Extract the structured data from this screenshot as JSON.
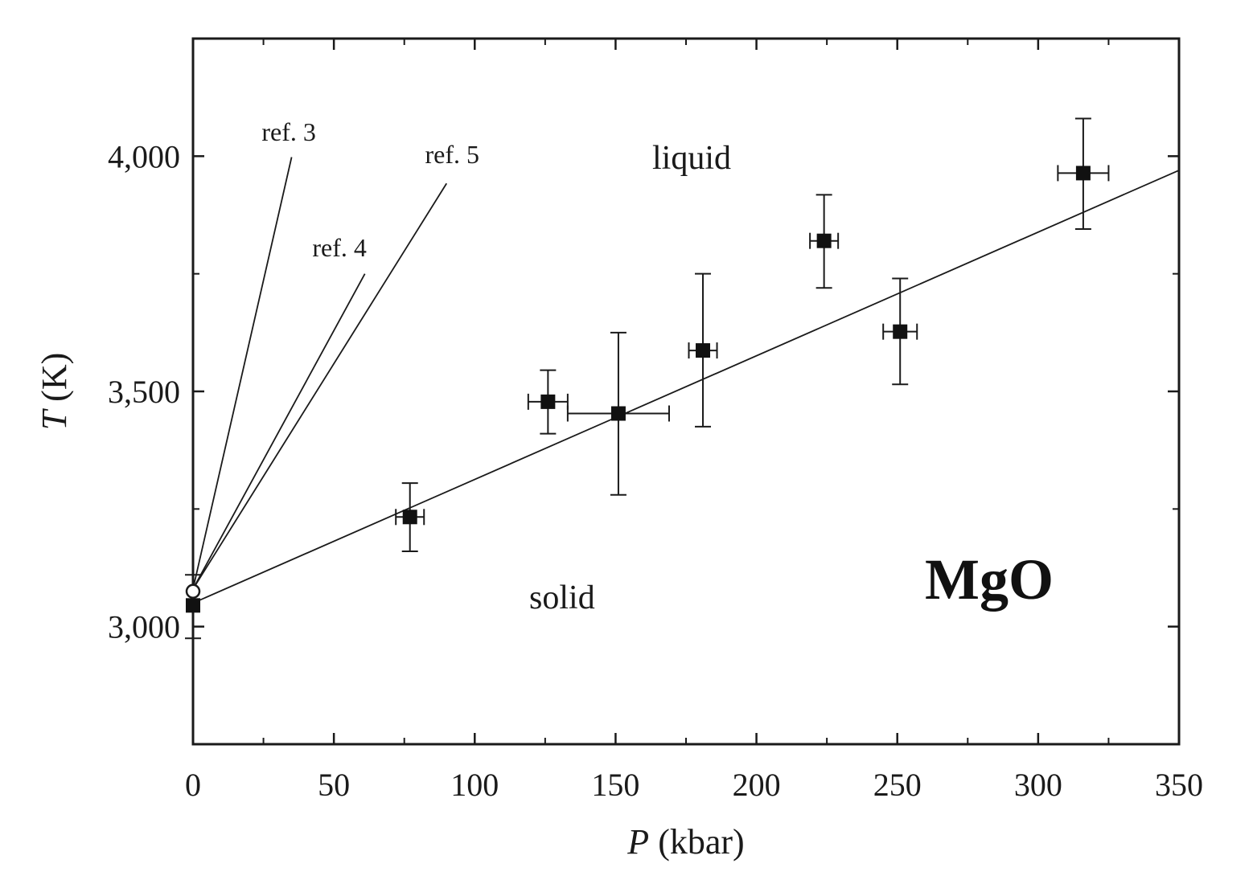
{
  "chart_data": {
    "type": "scatter",
    "title": "",
    "xlabel_symbol": "P",
    "xlabel_unit": " (kbar)",
    "ylabel_symbol": "T",
    "ylabel_unit": " (K)",
    "xlim": [
      0,
      350
    ],
    "ylim": [
      2750,
      4250
    ],
    "x_ticks": [
      0,
      50,
      100,
      150,
      200,
      250,
      300,
      350
    ],
    "x_tick_labels": [
      "0",
      "50",
      "100",
      "150",
      "200",
      "250",
      "300",
      "350"
    ],
    "y_ticks": [
      3000,
      3500,
      4000
    ],
    "y_tick_labels": [
      "3,000",
      "3,500",
      "4,000"
    ],
    "y_minor_ticks": [
      3250,
      3750
    ],
    "grid": false,
    "legend": "none",
    "compound_label": "MgO",
    "region_labels": [
      {
        "text": "liquid",
        "x": 177,
        "y": 3997
      },
      {
        "text": "solid",
        "x": 131,
        "y": 3063
      }
    ],
    "series": [
      {
        "name": "measured",
        "marker": "filled-square",
        "points": [
          {
            "x": 0,
            "y": 3045,
            "ylow": 2975,
            "yhigh": 3110,
            "xlow": 0,
            "xhigh": 0
          },
          {
            "x": 77,
            "y": 3233,
            "ylow": 3160,
            "yhigh": 3305,
            "xlow": 72,
            "xhigh": 82
          },
          {
            "x": 126,
            "y": 3478,
            "ylow": 3410,
            "yhigh": 3545,
            "xlow": 119,
            "xhigh": 133
          },
          {
            "x": 151,
            "y": 3453,
            "ylow": 3280,
            "yhigh": 3625,
            "xlow": 133,
            "xhigh": 169
          },
          {
            "x": 181,
            "y": 3587,
            "ylow": 3425,
            "yhigh": 3750,
            "xlow": 176,
            "xhigh": 186
          },
          {
            "x": 224,
            "y": 3820,
            "ylow": 3720,
            "yhigh": 3918,
            "xlow": 219,
            "xhigh": 229
          },
          {
            "x": 251,
            "y": 3627,
            "ylow": 3515,
            "yhigh": 3740,
            "xlow": 245,
            "xhigh": 257
          },
          {
            "x": 316,
            "y": 3964,
            "ylow": 3845,
            "yhigh": 4080,
            "xlow": 307,
            "xhigh": 325
          }
        ]
      },
      {
        "name": "open",
        "marker": "open-circle",
        "points": [
          {
            "x": 0,
            "y": 3075
          }
        ]
      }
    ],
    "lines": [
      {
        "name": "fit",
        "points": [
          [
            0,
            3050
          ],
          [
            350,
            3970
          ]
        ]
      },
      {
        "name": "ref. 3",
        "points": [
          [
            0,
            3080
          ],
          [
            35,
            3998
          ]
        ]
      },
      {
        "name": "ref. 4",
        "points": [
          [
            0,
            3080
          ],
          [
            61,
            3750
          ]
        ]
      },
      {
        "name": "ref. 5",
        "points": [
          [
            0,
            3080
          ],
          [
            90,
            3942
          ]
        ]
      }
    ],
    "line_labels": [
      {
        "text": "ref. 3",
        "x": 34,
        "y": 4052
      },
      {
        "text": "ref. 4",
        "x": 52,
        "y": 3806
      },
      {
        "text": "ref. 5",
        "x": 92,
        "y": 4004
      }
    ]
  }
}
